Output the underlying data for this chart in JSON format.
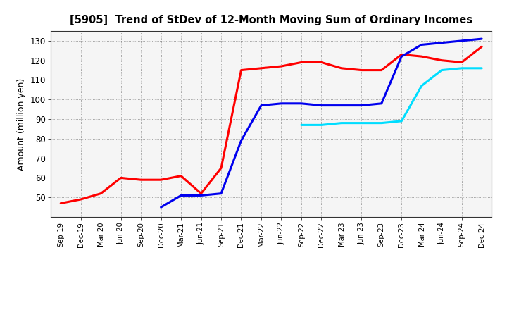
{
  "title": "[5905]  Trend of StDev of 12-Month Moving Sum of Ordinary Incomes",
  "ylabel": "Amount (million yen)",
  "background_color": "#ffffff",
  "plot_bg_color": "#f5f5f5",
  "grid_color": "#999999",
  "ylim": [
    40,
    135
  ],
  "yticks": [
    50,
    60,
    70,
    80,
    90,
    100,
    110,
    120,
    130
  ],
  "x_labels": [
    "Sep-19",
    "Dec-19",
    "Mar-20",
    "Jun-20",
    "Sep-20",
    "Dec-20",
    "Mar-21",
    "Jun-21",
    "Sep-21",
    "Dec-21",
    "Mar-22",
    "Jun-22",
    "Sep-22",
    "Dec-22",
    "Mar-23",
    "Jun-23",
    "Sep-23",
    "Dec-23",
    "Mar-24",
    "Jun-24",
    "Sep-24",
    "Dec-24"
  ],
  "series": {
    "3 Years": {
      "color": "#ff0000",
      "data": [
        47,
        49,
        52,
        60,
        59,
        59,
        61,
        52,
        65,
        115,
        116,
        117,
        119,
        119,
        116,
        115,
        115,
        123,
        122,
        120,
        119,
        127
      ]
    },
    "5 Years": {
      "color": "#0000ee",
      "data": [
        null,
        null,
        null,
        null,
        null,
        45,
        51,
        51,
        52,
        79,
        97,
        98,
        98,
        97,
        97,
        97,
        98,
        122,
        128,
        129,
        130,
        131
      ]
    },
    "7 Years": {
      "color": "#00ddff",
      "data": [
        null,
        null,
        null,
        null,
        null,
        null,
        null,
        null,
        null,
        null,
        null,
        null,
        87,
        87,
        88,
        88,
        88,
        89,
        107,
        115,
        116,
        116
      ]
    },
    "10 Years": {
      "color": "#008000",
      "data": [
        null,
        null,
        null,
        null,
        null,
        null,
        null,
        null,
        null,
        null,
        null,
        null,
        null,
        null,
        null,
        null,
        null,
        null,
        null,
        null,
        null,
        null
      ]
    }
  }
}
